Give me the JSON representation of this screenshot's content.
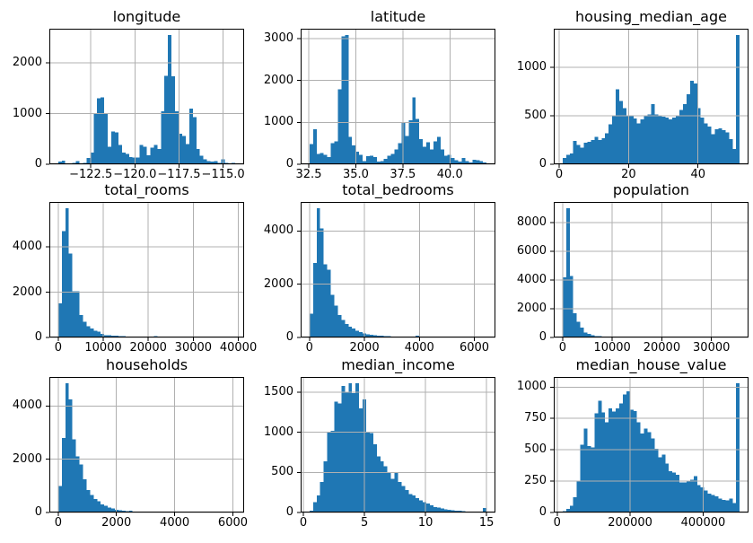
{
  "figure": {
    "background": "#ffffff",
    "bar_color": "#1f77b4",
    "grid_color": "#b0b0b0",
    "axis_color": "#000000",
    "text_color": "#000000"
  },
  "chart_data": [
    {
      "type": "bar",
      "title": "longitude",
      "bin_start": -124.35,
      "bin_end": -114.31,
      "xlim": [
        -124.85,
        -113.81
      ],
      "ylim": [
        0,
        2677
      ],
      "grid": true,
      "legend": "none",
      "bins": [
        55,
        70,
        15,
        10,
        30,
        60,
        15,
        25,
        120,
        230,
        1000,
        1300,
        1320,
        990,
        350,
        650,
        630,
        380,
        230,
        200,
        140,
        130,
        130,
        380,
        350,
        180,
        330,
        380,
        300,
        1050,
        1750,
        2550,
        1740,
        1050,
        600,
        560,
        400,
        1100,
        930,
        300,
        170,
        100,
        60,
        50,
        60,
        30,
        100,
        30,
        10,
        25
      ],
      "xticks": [
        {
          "v": -122.5,
          "label": "−122.5"
        },
        {
          "v": -120.0,
          "label": "−120.0"
        },
        {
          "v": -117.5,
          "label": "−117.5"
        },
        {
          "v": -115.0,
          "label": "−115.0"
        }
      ],
      "yticks": [
        {
          "v": 0,
          "label": "0"
        },
        {
          "v": 1000,
          "label": "1000"
        },
        {
          "v": 2000,
          "label": "2000"
        }
      ]
    },
    {
      "type": "bar",
      "title": "latitude",
      "bin_start": 32.54,
      "bin_end": 41.95,
      "xlim": [
        32.07,
        42.42
      ],
      "ylim": [
        0,
        3234
      ],
      "grid": true,
      "legend": "none",
      "bins": [
        480,
        840,
        250,
        270,
        220,
        170,
        500,
        550,
        1790,
        3050,
        3080,
        650,
        450,
        300,
        230,
        80,
        190,
        200,
        170,
        60,
        80,
        130,
        200,
        250,
        350,
        500,
        1000,
        680,
        1050,
        1600,
        1080,
        600,
        420,
        520,
        350,
        550,
        650,
        350,
        200,
        220,
        150,
        100,
        60,
        150,
        70,
        40,
        110,
        100,
        80,
        40
      ],
      "xticks": [
        {
          "v": 32.5,
          "label": "32.5"
        },
        {
          "v": 35.0,
          "label": "35.0"
        },
        {
          "v": 37.5,
          "label": "37.5"
        },
        {
          "v": 40.0,
          "label": "40.0"
        }
      ],
      "yticks": [
        {
          "v": 0,
          "label": "0"
        },
        {
          "v": 1000,
          "label": "1000"
        },
        {
          "v": 2000,
          "label": "2000"
        },
        {
          "v": 3000,
          "label": "3000"
        }
      ]
    },
    {
      "type": "bar",
      "title": "housing_median_age",
      "bin_start": 1,
      "bin_end": 52,
      "xlim": [
        -1.55,
        54.55
      ],
      "ylim": [
        0,
        1396
      ],
      "grid": true,
      "legend": "none",
      "bins": [
        65,
        95,
        110,
        240,
        200,
        170,
        220,
        230,
        250,
        280,
        250,
        270,
        320,
        410,
        500,
        770,
        650,
        580,
        500,
        505,
        470,
        420,
        460,
        500,
        515,
        620,
        515,
        500,
        490,
        480,
        460,
        480,
        500,
        560,
        620,
        720,
        860,
        830,
        580,
        480,
        420,
        390,
        310,
        360,
        370,
        350,
        330,
        260,
        155,
        1330
      ],
      "xticks": [
        {
          "v": 0,
          "label": "0"
        },
        {
          "v": 20,
          "label": "20"
        },
        {
          "v": 40,
          "label": "40"
        }
      ],
      "yticks": [
        {
          "v": 0,
          "label": "0"
        },
        {
          "v": 500,
          "label": "500"
        },
        {
          "v": 1000,
          "label": "1000"
        }
      ]
    },
    {
      "type": "bar",
      "title": "total_rooms",
      "bin_start": 2,
      "bin_end": 39320,
      "xlim": [
        -1964,
        41286
      ],
      "ylim": [
        0,
        5985
      ],
      "grid": true,
      "legend": "none",
      "bins": [
        1500,
        4700,
        5700,
        3700,
        2050,
        2050,
        1000,
        700,
        500,
        400,
        300,
        250,
        150,
        100,
        90,
        80,
        70,
        60,
        50,
        40,
        35,
        30,
        25,
        20,
        18,
        15,
        12,
        50,
        8,
        6,
        5,
        4,
        3,
        3,
        2,
        2,
        1,
        1,
        1,
        1,
        0,
        1,
        0,
        0,
        1,
        0,
        0,
        0,
        0,
        1
      ],
      "xticks": [
        {
          "v": 0,
          "label": "0"
        },
        {
          "v": 10000,
          "label": "10000"
        },
        {
          "v": 20000,
          "label": "20000"
        },
        {
          "v": 30000,
          "label": "30000"
        },
        {
          "v": 40000,
          "label": "40000"
        }
      ],
      "yticks": [
        {
          "v": 0,
          "label": "0"
        },
        {
          "v": 2000,
          "label": "2000"
        },
        {
          "v": 4000,
          "label": "4000"
        }
      ]
    },
    {
      "type": "bar",
      "title": "total_bedrooms",
      "bin_start": 1,
      "bin_end": 6445,
      "xlim": [
        -321,
        6767
      ],
      "ylim": [
        0,
        5092
      ],
      "grid": true,
      "legend": "none",
      "bins": [
        900,
        2800,
        4850,
        4100,
        2750,
        2550,
        1600,
        1200,
        850,
        650,
        500,
        400,
        330,
        250,
        200,
        150,
        120,
        100,
        80,
        70,
        60,
        50,
        45,
        40,
        35,
        30,
        25,
        20,
        18,
        15,
        60,
        10,
        8,
        6,
        5,
        4,
        3,
        3,
        2,
        2,
        1,
        1,
        1,
        0,
        1,
        0,
        0,
        0,
        0,
        1
      ],
      "xticks": [
        {
          "v": 0,
          "label": "0"
        },
        {
          "v": 2000,
          "label": "2000"
        },
        {
          "v": 4000,
          "label": "4000"
        },
        {
          "v": 6000,
          "label": "6000"
        }
      ],
      "yticks": [
        {
          "v": 0,
          "label": "0"
        },
        {
          "v": 2000,
          "label": "2000"
        },
        {
          "v": 4000,
          "label": "4000"
        }
      ]
    },
    {
      "type": "bar",
      "title": "population",
      "bin_start": 3,
      "bin_end": 35682,
      "xlim": [
        -1781,
        37466
      ],
      "ylim": [
        0,
        9450
      ],
      "grid": true,
      "legend": "none",
      "bins": [
        4200,
        9000,
        4300,
        1700,
        1100,
        700,
        350,
        250,
        150,
        100,
        80,
        60,
        50,
        40,
        30,
        20,
        15,
        10,
        8,
        6,
        5,
        4,
        3,
        3,
        2,
        2,
        1,
        1,
        1,
        1,
        0,
        1,
        0,
        0,
        1,
        0,
        0,
        0,
        1,
        0,
        0,
        0,
        0,
        0,
        0,
        0,
        0,
        0,
        0,
        1
      ],
      "xticks": [
        {
          "v": 0,
          "label": "0"
        },
        {
          "v": 10000,
          "label": "10000"
        },
        {
          "v": 20000,
          "label": "20000"
        },
        {
          "v": 30000,
          "label": "30000"
        }
      ],
      "yticks": [
        {
          "v": 0,
          "label": "0"
        },
        {
          "v": 2000,
          "label": "2000"
        },
        {
          "v": 4000,
          "label": "4000"
        },
        {
          "v": 6000,
          "label": "6000"
        },
        {
          "v": 8000,
          "label": "8000"
        }
      ]
    },
    {
      "type": "bar",
      "title": "households",
      "bin_start": 1,
      "bin_end": 6082,
      "xlim": [
        -303,
        6386
      ],
      "ylim": [
        0,
        5092
      ],
      "grid": true,
      "legend": "none",
      "bins": [
        1000,
        2800,
        4850,
        4250,
        2750,
        2100,
        1800,
        1250,
        850,
        650,
        500,
        420,
        300,
        250,
        180,
        150,
        100,
        80,
        60,
        50,
        60,
        30,
        25,
        20,
        15,
        12,
        10,
        8,
        6,
        5,
        4,
        3,
        3,
        2,
        2,
        1,
        1,
        1,
        0,
        1,
        0,
        0,
        1,
        0,
        0,
        0,
        0,
        0,
        0,
        1
      ],
      "xticks": [
        {
          "v": 0,
          "label": "0"
        },
        {
          "v": 2000,
          "label": "2000"
        },
        {
          "v": 4000,
          "label": "4000"
        },
        {
          "v": 6000,
          "label": "6000"
        }
      ],
      "yticks": [
        {
          "v": 0,
          "label": "0"
        },
        {
          "v": 2000,
          "label": "2000"
        },
        {
          "v": 4000,
          "label": "4000"
        }
      ]
    },
    {
      "type": "bar",
      "title": "median_income",
      "bin_start": 0.4999,
      "bin_end": 15.0001,
      "xlim": [
        -0.225,
        15.725
      ],
      "ylim": [
        0,
        1690
      ],
      "grid": true,
      "legend": "none",
      "bins": [
        20,
        130,
        210,
        380,
        640,
        1010,
        1020,
        1380,
        1360,
        1580,
        1500,
        1610,
        1490,
        1610,
        1300,
        1410,
        1010,
        990,
        850,
        700,
        640,
        575,
        500,
        420,
        500,
        380,
        330,
        280,
        230,
        210,
        180,
        150,
        130,
        110,
        90,
        70,
        60,
        50,
        40,
        35,
        30,
        25,
        20,
        15,
        12,
        10,
        8,
        5,
        3,
        55
      ],
      "xticks": [
        {
          "v": 0,
          "label": "0"
        },
        {
          "v": 5,
          "label": "5"
        },
        {
          "v": 10,
          "label": "10"
        },
        {
          "v": 15,
          "label": "15"
        }
      ],
      "yticks": [
        {
          "v": 0,
          "label": "0"
        },
        {
          "v": 500,
          "label": "500"
        },
        {
          "v": 1000,
          "label": "1000"
        },
        {
          "v": 1500,
          "label": "1500"
        }
      ]
    },
    {
      "type": "bar",
      "title": "median_house_value",
      "bin_start": 14999,
      "bin_end": 500001,
      "xlim": [
        -9251,
        524251
      ],
      "ylim": [
        0,
        1081
      ],
      "grid": true,
      "legend": "none",
      "bins": [
        10,
        30,
        55,
        120,
        250,
        540,
        670,
        530,
        520,
        790,
        890,
        800,
        720,
        830,
        805,
        830,
        870,
        940,
        965,
        820,
        810,
        720,
        630,
        670,
        640,
        590,
        510,
        440,
        460,
        390,
        330,
        320,
        300,
        240,
        240,
        250,
        260,
        290,
        220,
        200,
        175,
        150,
        140,
        130,
        110,
        100,
        95,
        110,
        75,
        1030
      ],
      "xticks": [
        {
          "v": 0,
          "label": "0"
        },
        {
          "v": 200000,
          "label": "200000"
        },
        {
          "v": 400000,
          "label": "400000"
        }
      ],
      "yticks": [
        {
          "v": 0,
          "label": "0"
        },
        {
          "v": 250,
          "label": "250"
        },
        {
          "v": 500,
          "label": "500"
        },
        {
          "v": 750,
          "label": "750"
        },
        {
          "v": 1000,
          "label": "1000"
        }
      ]
    }
  ]
}
